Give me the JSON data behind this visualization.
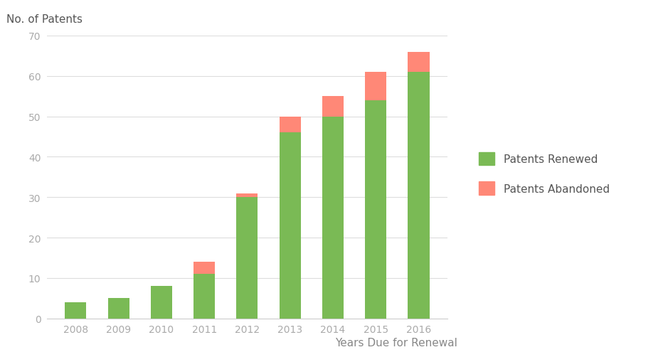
{
  "years": [
    "2008",
    "2009",
    "2010",
    "2011",
    "2012",
    "2013",
    "2014",
    "2015",
    "2016"
  ],
  "renewed": [
    4,
    5,
    8,
    11,
    30,
    46,
    50,
    54,
    61
  ],
  "abandoned": [
    0,
    0,
    0,
    3,
    1,
    4,
    5,
    7,
    5
  ],
  "color_renewed": "#7aba55",
  "color_abandoned": "#ff8877",
  "ylabel": "No. of Patents",
  "xlabel": "Years Due for Renewal",
  "ylim": [
    0,
    70
  ],
  "yticks": [
    0,
    10,
    20,
    30,
    40,
    50,
    60,
    70
  ],
  "legend_renewed": "Patents Renewed",
  "legend_abandoned": "Patents Abandoned",
  "background_color": "#ffffff",
  "grid_color": "#dddddd",
  "bar_width": 0.5,
  "tick_fontsize": 10,
  "label_fontsize": 11,
  "legend_fontsize": 11,
  "tick_color": "#aaaaaa",
  "label_color": "#888888",
  "ylabel_color": "#555555"
}
